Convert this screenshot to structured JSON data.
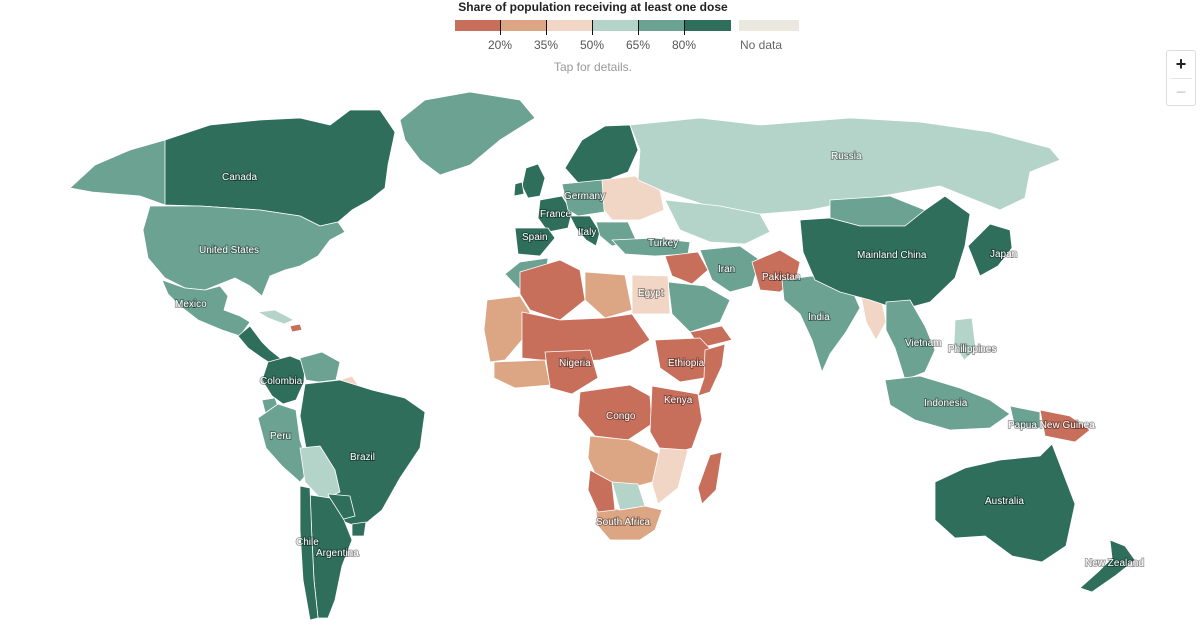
{
  "legend": {
    "title": "Share of population receiving at least one dose",
    "tick_labels": [
      "20%",
      "35%",
      "50%",
      "65%",
      "80%"
    ],
    "colors": [
      "#c86f5c",
      "#dca684",
      "#f2d6c5",
      "#b5d4c9",
      "#6ca291",
      "#2e6e5b"
    ],
    "no_data_label": "No data",
    "no_data_color": "#ebe8e0",
    "hint": "Tap for details."
  },
  "zoom": {
    "in_label": "+",
    "out_label": "−"
  },
  "labels": {
    "canada": "Canada",
    "united_states": "United States",
    "mexico": "Mexico",
    "colombia": "Colombia",
    "peru": "Peru",
    "brazil": "Brazil",
    "chile": "Chile",
    "argentina": "Argentina",
    "russia": "Russia",
    "germany": "Germany",
    "france": "France",
    "spain": "Spain",
    "italy": "Italy",
    "turkey": "Turkey",
    "iran": "Iran",
    "pakistan": "Pakistan",
    "egypt": "Egypt",
    "nigeria": "Nigeria",
    "ethiopia": "Ethiopia",
    "congo": "Congo",
    "kenya": "Kenya",
    "south_africa": "South Africa",
    "india": "India",
    "mainland_china": "Mainland China",
    "japan": "Japan",
    "vietnam": "Vietnam",
    "philippines": "Philippines",
    "indonesia": "Indonesia",
    "papua_new_guinea": "Papua New Guinea",
    "australia": "Australia",
    "new_zealand": "New Zealand"
  }
}
